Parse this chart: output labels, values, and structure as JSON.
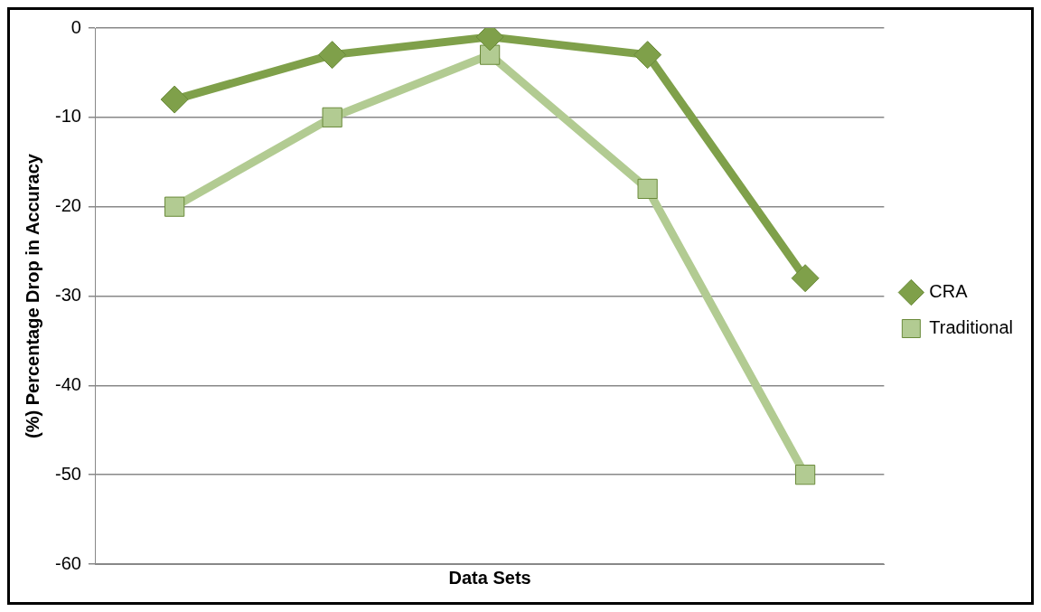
{
  "chart_data": {
    "type": "line",
    "xlabel": "Data Sets",
    "ylabel": "(%) Percentage Drop in Accuracy",
    "categories": [
      null,
      null,
      null,
      null,
      null
    ],
    "series": [
      {
        "name": "CRA",
        "color": "#7fa04a",
        "marker": "diamond",
        "values": [
          -8,
          -3,
          -1,
          -3,
          -28
        ]
      },
      {
        "name": "Traditional",
        "color": "#b2cb92",
        "marker": "square",
        "values": [
          -20,
          -10,
          -3,
          -18,
          -50
        ]
      }
    ],
    "ylim": [
      -60,
      0
    ],
    "yticks": [
      -60,
      -50,
      -40,
      -30,
      -20,
      -10,
      0
    ],
    "grid": "y",
    "legend": "right",
    "tick_labels": "y"
  }
}
